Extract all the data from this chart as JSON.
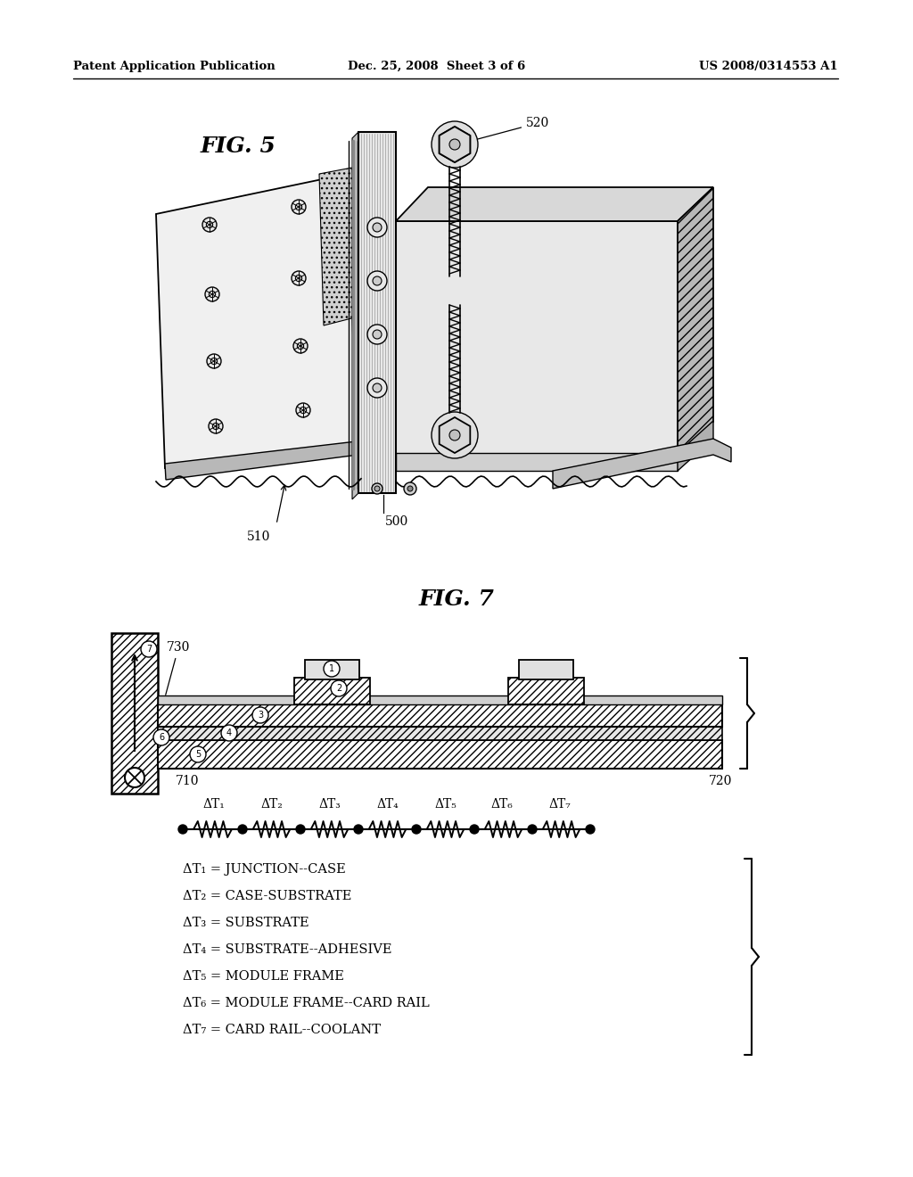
{
  "header_left": "Patent Application Publication",
  "header_mid": "Dec. 25, 2008  Sheet 3 of 6",
  "header_right": "US 2008/0314553 A1",
  "fig5_label": "FIG. 5",
  "fig7_label": "FIG. 7",
  "delta_labels": [
    "ΔT₁",
    "ΔT₂",
    "ΔT₃",
    "ΔT₄",
    "ΔT₅",
    "ΔT₆",
    "ΔT₇"
  ],
  "legend_lines": [
    "ΔT₁ = JUNCTION--CASE",
    "ΔT₂ = CASE-SUBSTRATE",
    "ΔT₃ = SUBSTRATE",
    "ΔT₄ = SUBSTRATE--ADHESIVE",
    "ΔT₅ = MODULE FRAME",
    "ΔT₆ = MODULE FRAME--CARD RAIL",
    "ΔT₇ = CARD RAIL--COOLANT"
  ],
  "bg_color": "#ffffff"
}
